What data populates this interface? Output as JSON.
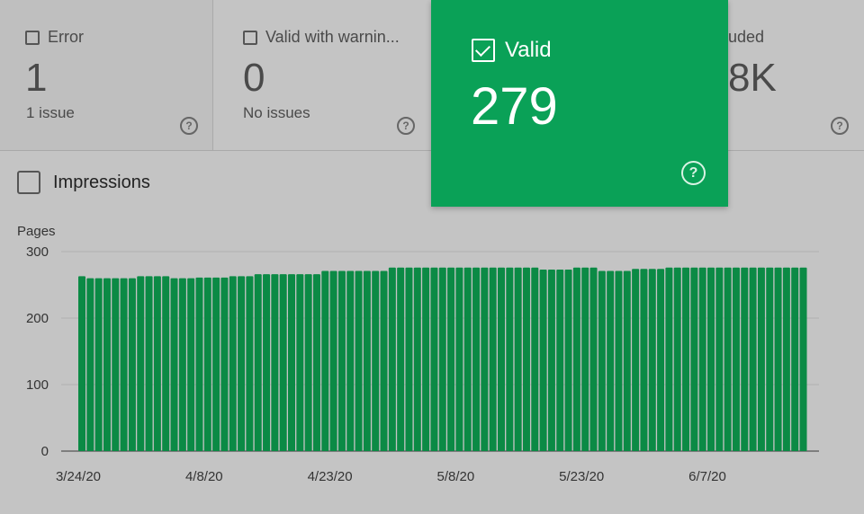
{
  "tiles": {
    "error": {
      "label": "Error",
      "count": "1",
      "sub": "1 issue"
    },
    "warning": {
      "label": "Valid with warnin...",
      "count": "0",
      "sub": "No issues"
    },
    "valid": {
      "label": "Valid",
      "count": "279"
    },
    "excluded": {
      "label": "uded",
      "count": "8K"
    }
  },
  "impressions": {
    "label": "Impressions"
  },
  "colors": {
    "valid_green": "#0aa157",
    "bar_green": "#0b8a45",
    "background": "#c4c4c4"
  },
  "chart_data": {
    "type": "bar",
    "ylabel": "Pages",
    "ylim": [
      0,
      300
    ],
    "yticks": [
      0,
      100,
      200,
      300
    ],
    "x_tick_labels": [
      "3/24/20",
      "4/8/20",
      "4/23/20",
      "5/8/20",
      "5/23/20",
      "6/7/20"
    ],
    "x_tick_indices": [
      0,
      15,
      30,
      45,
      60,
      75
    ],
    "start_label": "3/24/20",
    "series": [
      {
        "values": [
          263,
          260,
          260,
          260,
          260,
          260,
          260,
          263,
          263,
          263,
          263,
          260,
          260,
          260,
          261,
          261,
          261,
          261,
          263,
          263,
          263,
          266,
          266,
          266,
          266,
          266,
          266,
          266,
          266,
          271,
          271,
          271,
          271,
          271,
          271,
          271,
          271,
          276,
          276,
          276,
          276,
          276,
          276,
          276,
          276,
          276,
          276,
          276,
          276,
          276,
          276,
          276,
          276,
          276,
          276,
          273,
          273,
          273,
          273,
          276,
          276,
          276,
          271,
          271,
          271,
          271,
          274,
          274,
          274,
          274,
          276,
          276,
          276,
          276,
          276,
          276,
          276,
          276,
          276,
          276,
          276,
          276,
          276,
          276,
          276,
          276,
          276
        ]
      }
    ],
    "grid": true
  }
}
